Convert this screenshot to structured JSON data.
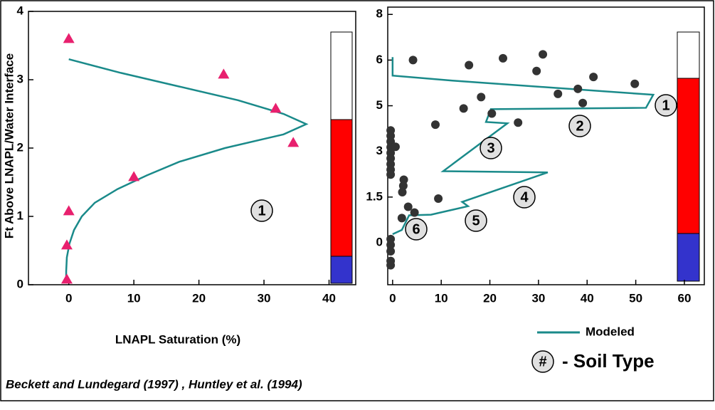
{
  "y_label": "Ft Above LNAPL/Water Interface",
  "x_label": "LNAPL Saturation (%)",
  "legend": {
    "modeled": "Modeled",
    "symbol": "#",
    "soil_type": "- Soil Type"
  },
  "footer": "Beckett and Lundegard (1997) , Huntley et al. (1994)",
  "chart_data": [
    {
      "type": "scatter",
      "xlim": [
        -6.2,
        44.1
      ],
      "ylim": [
        0,
        4.0
      ],
      "xticks": [
        0,
        10,
        20,
        30,
        40
      ],
      "yticks": [
        0,
        1,
        2,
        3,
        4
      ],
      "points": {
        "marker": "triangle",
        "color": "#e8206e",
        "x": [
          0,
          23.8,
          31.8,
          34.5,
          10,
          0,
          -0.3,
          -0.3
        ],
        "values": [
          3.6,
          3.08,
          2.58,
          2.08,
          1.58,
          1.08,
          0.58,
          0.08
        ]
      },
      "modeled": {
        "color": "#1a8a8a",
        "x": [
          0,
          8,
          17,
          26,
          33,
          36.5,
          33,
          24,
          17,
          12,
          7.5,
          4,
          2,
          0.8,
          0.1,
          -0.3,
          -0.4,
          -0.4
        ],
        "values": [
          3.3,
          3.1,
          2.9,
          2.7,
          2.5,
          2.35,
          2.2,
          2.0,
          1.8,
          1.6,
          1.4,
          1.2,
          1.0,
          0.8,
          0.6,
          0.4,
          0.2,
          0.05
        ]
      },
      "annotations": [
        "1"
      ]
    },
    {
      "type": "scatter",
      "yscale": "tick-spaced",
      "xlim": [
        -1.0,
        64.1
      ],
      "ylim": [
        -1.38,
        8.32
      ],
      "xticks": [
        0,
        10,
        20,
        30,
        40,
        50,
        60
      ],
      "yticks": [
        0,
        1.5,
        3,
        5,
        6,
        8
      ],
      "points": {
        "marker": "circle",
        "color": "#333333",
        "x": [
          4.2,
          15.7,
          22.7,
          30.9,
          29.6,
          41.3,
          49.8,
          38.1,
          34.0,
          39.1,
          18.2,
          14.6,
          20.4,
          25.8,
          8.8,
          9.4,
          2.3,
          2.2,
          2.0,
          3.2,
          4.5,
          1.9,
          -0.4,
          -0.4,
          -0.4,
          -0.4,
          -0.4,
          -0.4,
          -0.4,
          -0.4,
          -0.4,
          0.6,
          -0.4,
          -0.4,
          -0.4,
          -0.4,
          -0.4
        ],
        "values": [
          6.0,
          5.89,
          6.08,
          6.25,
          5.76,
          5.63,
          5.48,
          5.37,
          5.26,
          5.06,
          5.19,
          4.88,
          4.66,
          4.26,
          4.17,
          1.45,
          2.07,
          1.87,
          1.66,
          1.18,
          0.99,
          0.81,
          3.92,
          3.68,
          3.43,
          3.18,
          2.95,
          2.77,
          2.58,
          2.4,
          2.24,
          3.2,
          0.12,
          -0.07,
          -0.28,
          -0.6,
          -0.74
        ]
      },
      "modeled": {
        "color": "#1a8a8a",
        "x": [
          0,
          0,
          12.3,
          53.6,
          52.1,
          20.2,
          19.2,
          23.6,
          10.4,
          31.9,
          14.3,
          15.5,
          7.9,
          3.4,
          1.9,
          0
        ],
        "values": [
          6.13,
          5.66,
          5.55,
          5.24,
          4.91,
          4.85,
          4.29,
          4.23,
          2.35,
          2.31,
          1.34,
          1.2,
          0.92,
          0.9,
          0.42,
          0.28
        ]
      },
      "annotations": [
        "1",
        "2",
        "3",
        "4",
        "5",
        "6"
      ]
    }
  ]
}
